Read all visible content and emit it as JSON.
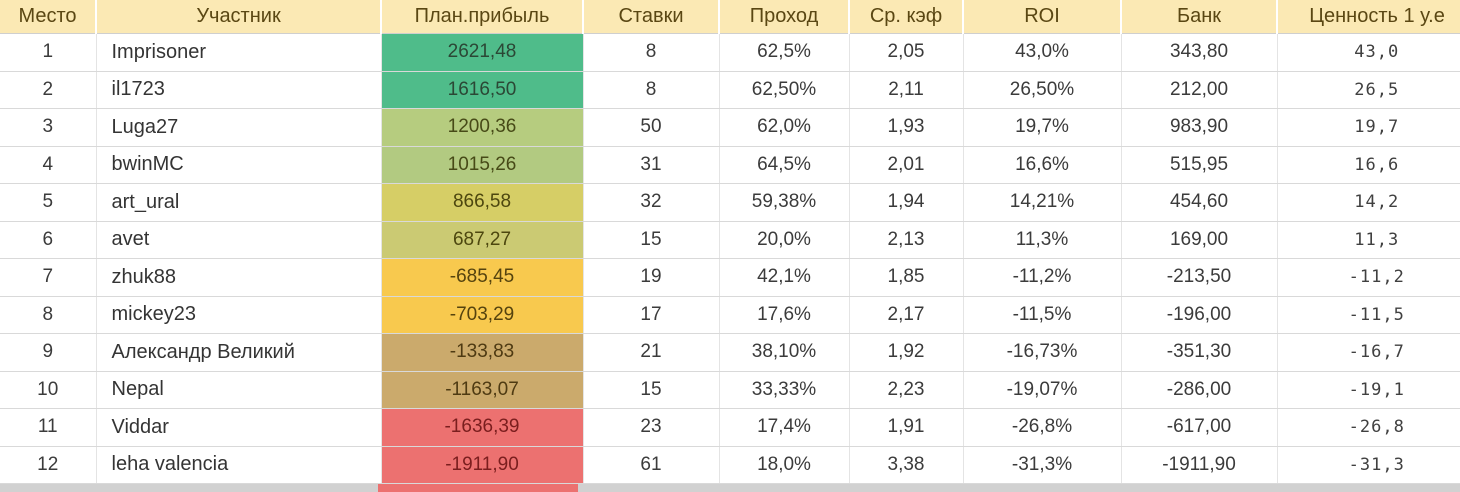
{
  "theme": {
    "header_bg": "#fbe9b4",
    "header_fg": "#5a4713",
    "grid_line": "#d9d9d9",
    "scale_colors": {
      "high_green": "#4fbc8a",
      "green_yellow": "#b5cb7e",
      "olive_yellow": "#d3cc69",
      "gold": "#f8c94e",
      "tan": "#cbaa6c",
      "red": "#ec7170"
    }
  },
  "table": {
    "columns": [
      {
        "key": "place",
        "label": "Место"
      },
      {
        "key": "participant",
        "label": "Участник"
      },
      {
        "key": "plan_profit",
        "label": "План.прибыль"
      },
      {
        "key": "bets",
        "label": "Ставки"
      },
      {
        "key": "pass_rate",
        "label": "Проход"
      },
      {
        "key": "avg_odds",
        "label": "Ср. кэф"
      },
      {
        "key": "roi",
        "label": "ROI"
      },
      {
        "key": "bank",
        "label": "Банк"
      },
      {
        "key": "value_per_unit",
        "label": "Ценность 1 у.е"
      }
    ],
    "rows": [
      {
        "place": "1",
        "participant": "Imprisoner",
        "plan_profit": "2621,48",
        "bets": "8",
        "pass_rate": "62,5%",
        "avg_odds": "2,05",
        "roi": "43,0%",
        "bank": "343,80",
        "value_per_unit": "43,0",
        "plan_bg": "#4fbc8a",
        "plan_fg": "#2b4735"
      },
      {
        "place": "2",
        "participant": "il1723",
        "plan_profit": "1616,50",
        "bets": "8",
        "pass_rate": "62,50%",
        "avg_odds": "2,11",
        "roi": "26,50%",
        "bank": "212,00",
        "value_per_unit": "26,5",
        "plan_bg": "#4fbc8a",
        "plan_fg": "#2b4735"
      },
      {
        "place": "3",
        "participant": "Luga27",
        "plan_profit": "1200,36",
        "bets": "50",
        "pass_rate": "62,0%",
        "avg_odds": "1,93",
        "roi": "19,7%",
        "bank": "983,90",
        "value_per_unit": "19,7",
        "plan_bg": "#b6cc7f",
        "plan_fg": "#474a17"
      },
      {
        "place": "4",
        "participant": "bwinMC",
        "plan_profit": "1015,26",
        "bets": "31",
        "pass_rate": "64,5%",
        "avg_odds": "2,01",
        "roi": "16,6%",
        "bank": "515,95",
        "value_per_unit": "16,6",
        "plan_bg": "#b2ca81",
        "plan_fg": "#474a17"
      },
      {
        "place": "5",
        "participant": "art_ural",
        "plan_profit": "866,58",
        "bets": "32",
        "pass_rate": "59,38%",
        "avg_odds": "1,94",
        "roi": "14,21%",
        "bank": "454,60",
        "value_per_unit": "14,2",
        "plan_bg": "#d6ce66",
        "plan_fg": "#4d470f"
      },
      {
        "place": "6",
        "participant": "avet",
        "plan_profit": "687,27",
        "bets": "15",
        "pass_rate": "20,0%",
        "avg_odds": "2,13",
        "roi": "11,3%",
        "bank": "169,00",
        "value_per_unit": "11,3",
        "plan_bg": "#cbca73",
        "plan_fg": "#4d470f"
      },
      {
        "place": "7",
        "participant": "zhuk88",
        "plan_profit": "-685,45",
        "bets": "19",
        "pass_rate": "42,1%",
        "avg_odds": "1,85",
        "roi": "-11,2%",
        "bank": "-213,50",
        "value_per_unit": "-11,2",
        "plan_bg": "#f8c94e",
        "plan_fg": "#55430e"
      },
      {
        "place": "8",
        "participant": "mickey23",
        "plan_profit": "-703,29",
        "bets": "17",
        "pass_rate": "17,6%",
        "avg_odds": "2,17",
        "roi": "-11,5%",
        "bank": "-196,00",
        "value_per_unit": "-11,5",
        "plan_bg": "#f8c94e",
        "plan_fg": "#55430e"
      },
      {
        "place": "9",
        "participant": "Александр Великий",
        "plan_profit": "-133,83",
        "bets": "21",
        "pass_rate": "38,10%",
        "avg_odds": "1,92",
        "roi": "-16,73%",
        "bank": "-351,30",
        "value_per_unit": "-16,7",
        "plan_bg": "#cbaa6c",
        "plan_fg": "#4e3a12"
      },
      {
        "place": "10",
        "participant": "Nepal",
        "plan_profit": "-1163,07",
        "bets": "15",
        "pass_rate": "33,33%",
        "avg_odds": "2,23",
        "roi": "-19,07%",
        "bank": "-286,00",
        "value_per_unit": "-19,1",
        "plan_bg": "#cbaa6c",
        "plan_fg": "#4e3a12"
      },
      {
        "place": "11",
        "participant": "Viddar",
        "plan_profit": "-1636,39",
        "bets": "23",
        "pass_rate": "17,4%",
        "avg_odds": "1,91",
        "roi": "-26,8%",
        "bank": "-617,00",
        "value_per_unit": "-26,8",
        "plan_bg": "#ec7170",
        "plan_fg": "#7a1e1e"
      },
      {
        "place": "12",
        "participant": "leha valencia",
        "plan_profit": "-1911,90",
        "bets": "61",
        "pass_rate": "18,0%",
        "avg_odds": "3,38",
        "roi": "-31,3%",
        "bank": "-1911,90",
        "value_per_unit": "-31,3",
        "plan_bg": "#ec7170",
        "plan_fg": "#7a1e1e"
      }
    ]
  }
}
